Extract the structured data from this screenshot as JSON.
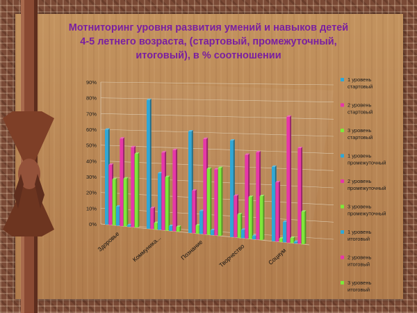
{
  "title": "Мотниторинг уровня  развития умений и навыков  детей  4-5 летнего возраста, (стартовый, промежуточный, итоговый), в % соотношении",
  "colors": {
    "level1": "#2fa7d6",
    "level2": "#e637a8",
    "level3": "#7ee83a"
  },
  "chart_data": {
    "type": "bar",
    "categories": [
      "Здоровье",
      "Коммуника...",
      "Познание",
      "Творчество",
      "Социум"
    ],
    "ylim": [
      0,
      90
    ],
    "yticks": [
      "0%",
      "10%",
      "20%",
      "30%",
      "40%",
      "50%",
      "60%",
      "70%",
      "80%",
      "90%"
    ],
    "legend_position": "right",
    "series": [
      {
        "name": "1 уровень стартовый",
        "color": "#2fa7d6",
        "values": [
          60,
          80,
          62,
          58,
          44
        ]
      },
      {
        "name": "2 уровень стартовый",
        "color": "#e637a8",
        "values": [
          38,
          13,
          26,
          25,
          35
        ]
      },
      {
        "name": "3 уровень стартовый",
        "color": "#7ee83a",
        "values": [
          29,
          4,
          5,
          14,
          2
        ]
      },
      {
        "name": "1 уровень промежуточный",
        "color": "#2fa7d6",
        "values": [
          12,
          35,
          14,
          5,
          12
        ]
      },
      {
        "name": "2 уровень промежуточный",
        "color": "#e637a8",
        "values": [
          55,
          48,
          58,
          50,
          74
        ]
      },
      {
        "name": "3 уровень промежуточный",
        "color": "#7ee83a",
        "values": [
          30,
          33,
          40,
          25,
          3
        ]
      },
      {
        "name": "1 уровень итоговый",
        "color": "#2fa7d6",
        "values": [
          1,
          3,
          3,
          2,
          1
        ]
      },
      {
        "name": "2 уровень итоговый",
        "color": "#e637a8",
        "values": [
          50,
          50,
          40,
          52,
          56
        ]
      },
      {
        "name": "3 уровень итоговый",
        "color": "#7ee83a",
        "values": [
          46,
          3,
          41,
          26,
          19
        ]
      }
    ]
  }
}
